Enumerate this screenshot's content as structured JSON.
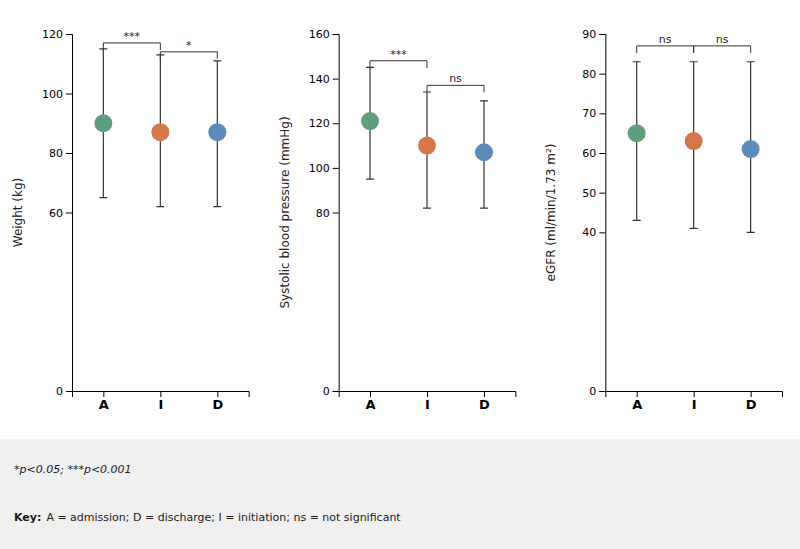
{
  "chart_data": [
    {
      "type": "dot",
      "y_label": "Weight (kg)",
      "categories": [
        "A",
        "I",
        "D"
      ],
      "values": [
        90,
        87,
        87
      ],
      "sd_upper": [
        115,
        113,
        111
      ],
      "sd_lower": [
        65,
        62,
        62
      ],
      "colors": [
        "#5f9e7e",
        "#d4784a",
        "#5b8db8"
      ],
      "ylim": [
        0,
        120
      ],
      "yticks": [
        0,
        60,
        80,
        100,
        120
      ],
      "annotations": [
        {
          "from": "A",
          "to": "I",
          "y": 117,
          "text": "***"
        },
        {
          "from": "I",
          "to": "D",
          "y": 114,
          "text": "*"
        }
      ]
    },
    {
      "type": "dot",
      "y_label": "Systolic blood pressure (mmHg)",
      "categories": [
        "A",
        "I",
        "D"
      ],
      "values": [
        121,
        110,
        107
      ],
      "sd_upper": [
        145,
        134,
        130
      ],
      "sd_lower": [
        95,
        82,
        82
      ],
      "colors": [
        "#5f9e7e",
        "#d4784a",
        "#5b8db8"
      ],
      "ylim": [
        0,
        160
      ],
      "yticks": [
        0,
        80,
        100,
        120,
        140,
        160
      ],
      "annotations": [
        {
          "from": "A",
          "to": "I",
          "y": 148,
          "text": "***"
        },
        {
          "from": "I",
          "to": "D",
          "y": 137,
          "text": "ns"
        }
      ]
    },
    {
      "type": "dot",
      "y_label": "eGFR (ml/min/1.73 m²)",
      "categories": [
        "A",
        "I",
        "D"
      ],
      "values": [
        65,
        63,
        61
      ],
      "sd_upper": [
        83,
        83,
        83
      ],
      "sd_lower": [
        43,
        41,
        40
      ],
      "colors": [
        "#5f9e7e",
        "#d4784a",
        "#5b8db8"
      ],
      "ylim": [
        0,
        90
      ],
      "yticks": [
        0,
        40,
        50,
        60,
        70,
        80,
        90
      ],
      "annotations": [
        {
          "from": "A",
          "to": "I",
          "y": 87,
          "text": "ns"
        },
        {
          "from": "I",
          "to": "D",
          "y": 87,
          "text": "ns"
        }
      ]
    }
  ],
  "footer": {
    "text": "*p<0.05; ***p<0.001",
    "key_label": "Key:",
    "key_text": "A = admission; D = discharge; I = initiation; ns = not significant"
  }
}
